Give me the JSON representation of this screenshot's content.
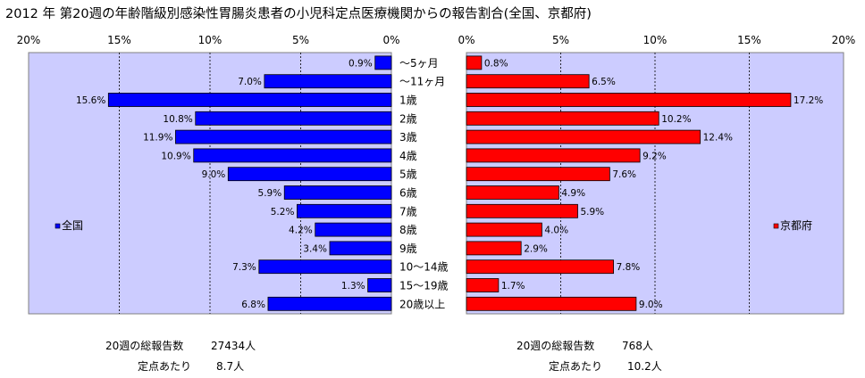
{
  "title": "2012 年 第20週の年齢階級別感染性胃腸炎患者の小児科定点医療機関からの報告割合(全国、京都府)",
  "chart_data": {
    "type": "bar",
    "orientation": "horizontal",
    "categories": [
      "～5ヶ月",
      "～11ヶ月",
      "1歳",
      "2歳",
      "3歳",
      "4歳",
      "5歳",
      "6歳",
      "7歳",
      "8歳",
      "9歳",
      "10～14歳",
      "15～19歳",
      "20歳以上"
    ],
    "xlim": [
      0,
      20
    ],
    "x_ticks": [
      "0%",
      "5%",
      "10%",
      "15%",
      "20%"
    ],
    "grid": true,
    "series": [
      {
        "name": "全国",
        "color": "#0000ff",
        "values": [
          0.9,
          7.0,
          15.6,
          10.8,
          11.9,
          10.9,
          9.0,
          5.9,
          5.2,
          4.2,
          3.4,
          7.3,
          1.3,
          6.8
        ],
        "labels": [
          "0.9%",
          "7.0%",
          "15.6%",
          "10.8%",
          "11.9%",
          "10.9%",
          "9.0%",
          "5.9%",
          "5.2%",
          "4.2%",
          "3.4%",
          "7.3%",
          "1.3%",
          "6.8%"
        ]
      },
      {
        "name": "京都府",
        "color": "#ff0000",
        "values": [
          0.8,
          6.5,
          17.2,
          10.2,
          12.4,
          9.2,
          7.6,
          4.9,
          5.9,
          4.0,
          2.9,
          7.8,
          1.7,
          9.0
        ],
        "labels": [
          "0.8%",
          "6.5%",
          "17.2%",
          "10.2%",
          "12.4%",
          "9.2%",
          "7.6%",
          "4.9%",
          "5.9%",
          "4.0%",
          "2.9%",
          "7.8%",
          "1.7%",
          "9.0%"
        ]
      }
    ],
    "plot_background": "#ccccff"
  },
  "footer": {
    "left": {
      "total_label": "20週の総報告数",
      "total_value": "27434人",
      "avg_label": "定点あたり",
      "avg_value": "8.7人"
    },
    "right": {
      "total_label": "20週の総報告数",
      "total_value": "768人",
      "avg_label": "定点あたり",
      "avg_value": "10.2人"
    }
  }
}
